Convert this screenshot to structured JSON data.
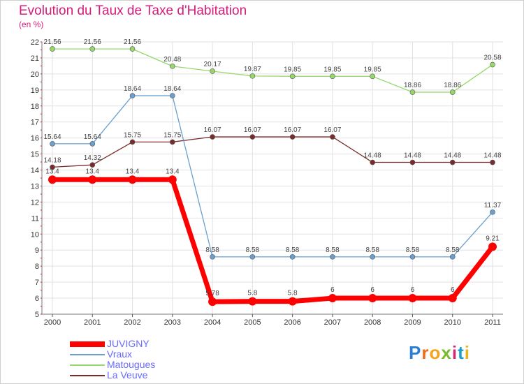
{
  "title": "Evolution du Taux de Taxe d'Habitation",
  "subtitle": "(en %)",
  "logo": {
    "letters": [
      "P",
      "r",
      "o",
      "x",
      "i",
      "t",
      "i"
    ],
    "colors": [
      "#2a7fd4",
      "#ef6c1a",
      "#f4a21c",
      "#7cb82f",
      "#d6247a",
      "#1aa0c8",
      "#e8b51a"
    ]
  },
  "chart_data": {
    "type": "line",
    "title": "Evolution du Taux de Taxe d'Habitation",
    "ylabel": "(en %)",
    "xlabel": "",
    "x": [
      "2000",
      "2001",
      "2002",
      "2003",
      "2004",
      "2005",
      "2006",
      "2007",
      "2008",
      "2009",
      "2010",
      "2011"
    ],
    "ylim": [
      5,
      22
    ],
    "yticks": [
      "5",
      "6",
      "7",
      "8",
      "9",
      "10",
      "11",
      "12",
      "13",
      "14",
      "15",
      "16",
      "17",
      "18",
      "19",
      "20",
      "21",
      "22"
    ],
    "grid": true,
    "legend_position": "bottom-left",
    "series": [
      {
        "name": "JUVIGNY",
        "color": "#ff0000",
        "values": [
          13.4,
          13.4,
          13.4,
          13.4,
          5.78,
          5.8,
          5.8,
          6,
          6,
          6,
          6,
          9.21
        ],
        "labels": [
          "13.4",
          "13.4",
          "13.4",
          "13.4",
          "5.78",
          "5.8",
          "5.8",
          "6",
          "6",
          "6",
          "6",
          "9.21"
        ]
      },
      {
        "name": "Vraux",
        "color": "#6a9fd0",
        "values": [
          15.64,
          15.64,
          18.64,
          18.64,
          8.58,
          8.58,
          8.58,
          8.58,
          8.58,
          8.58,
          8.58,
          11.37
        ],
        "labels": [
          "15.64",
          "15.64",
          "18.64",
          "18.64",
          "8.58",
          "8.58",
          "8.58",
          "8.58",
          "8.58",
          "8.58",
          "8.58",
          "11.37"
        ]
      },
      {
        "name": "Matougues",
        "color": "#96d86a",
        "values": [
          21.56,
          21.56,
          21.56,
          20.48,
          20.17,
          19.87,
          19.85,
          19.85,
          19.85,
          18.86,
          18.86,
          20.58
        ],
        "labels": [
          "21.56",
          "21.56",
          "21.56",
          "20.48",
          "20.17",
          "19.87",
          "19.85",
          "19.85",
          "19.85",
          "18.86",
          "18.86",
          "20.58"
        ]
      },
      {
        "name": "La Veuve",
        "color": "#7a2c2c",
        "values": [
          14.18,
          14.32,
          15.75,
          15.75,
          16.07,
          16.07,
          16.07,
          16.07,
          14.48,
          14.48,
          14.48,
          14.48
        ],
        "labels": [
          "14.18",
          "14.32",
          "15.75",
          "15.75",
          "16.07",
          "16.07",
          "16.07",
          "16.07",
          "14.48",
          "14.48",
          "14.48",
          "14.48"
        ]
      }
    ]
  }
}
